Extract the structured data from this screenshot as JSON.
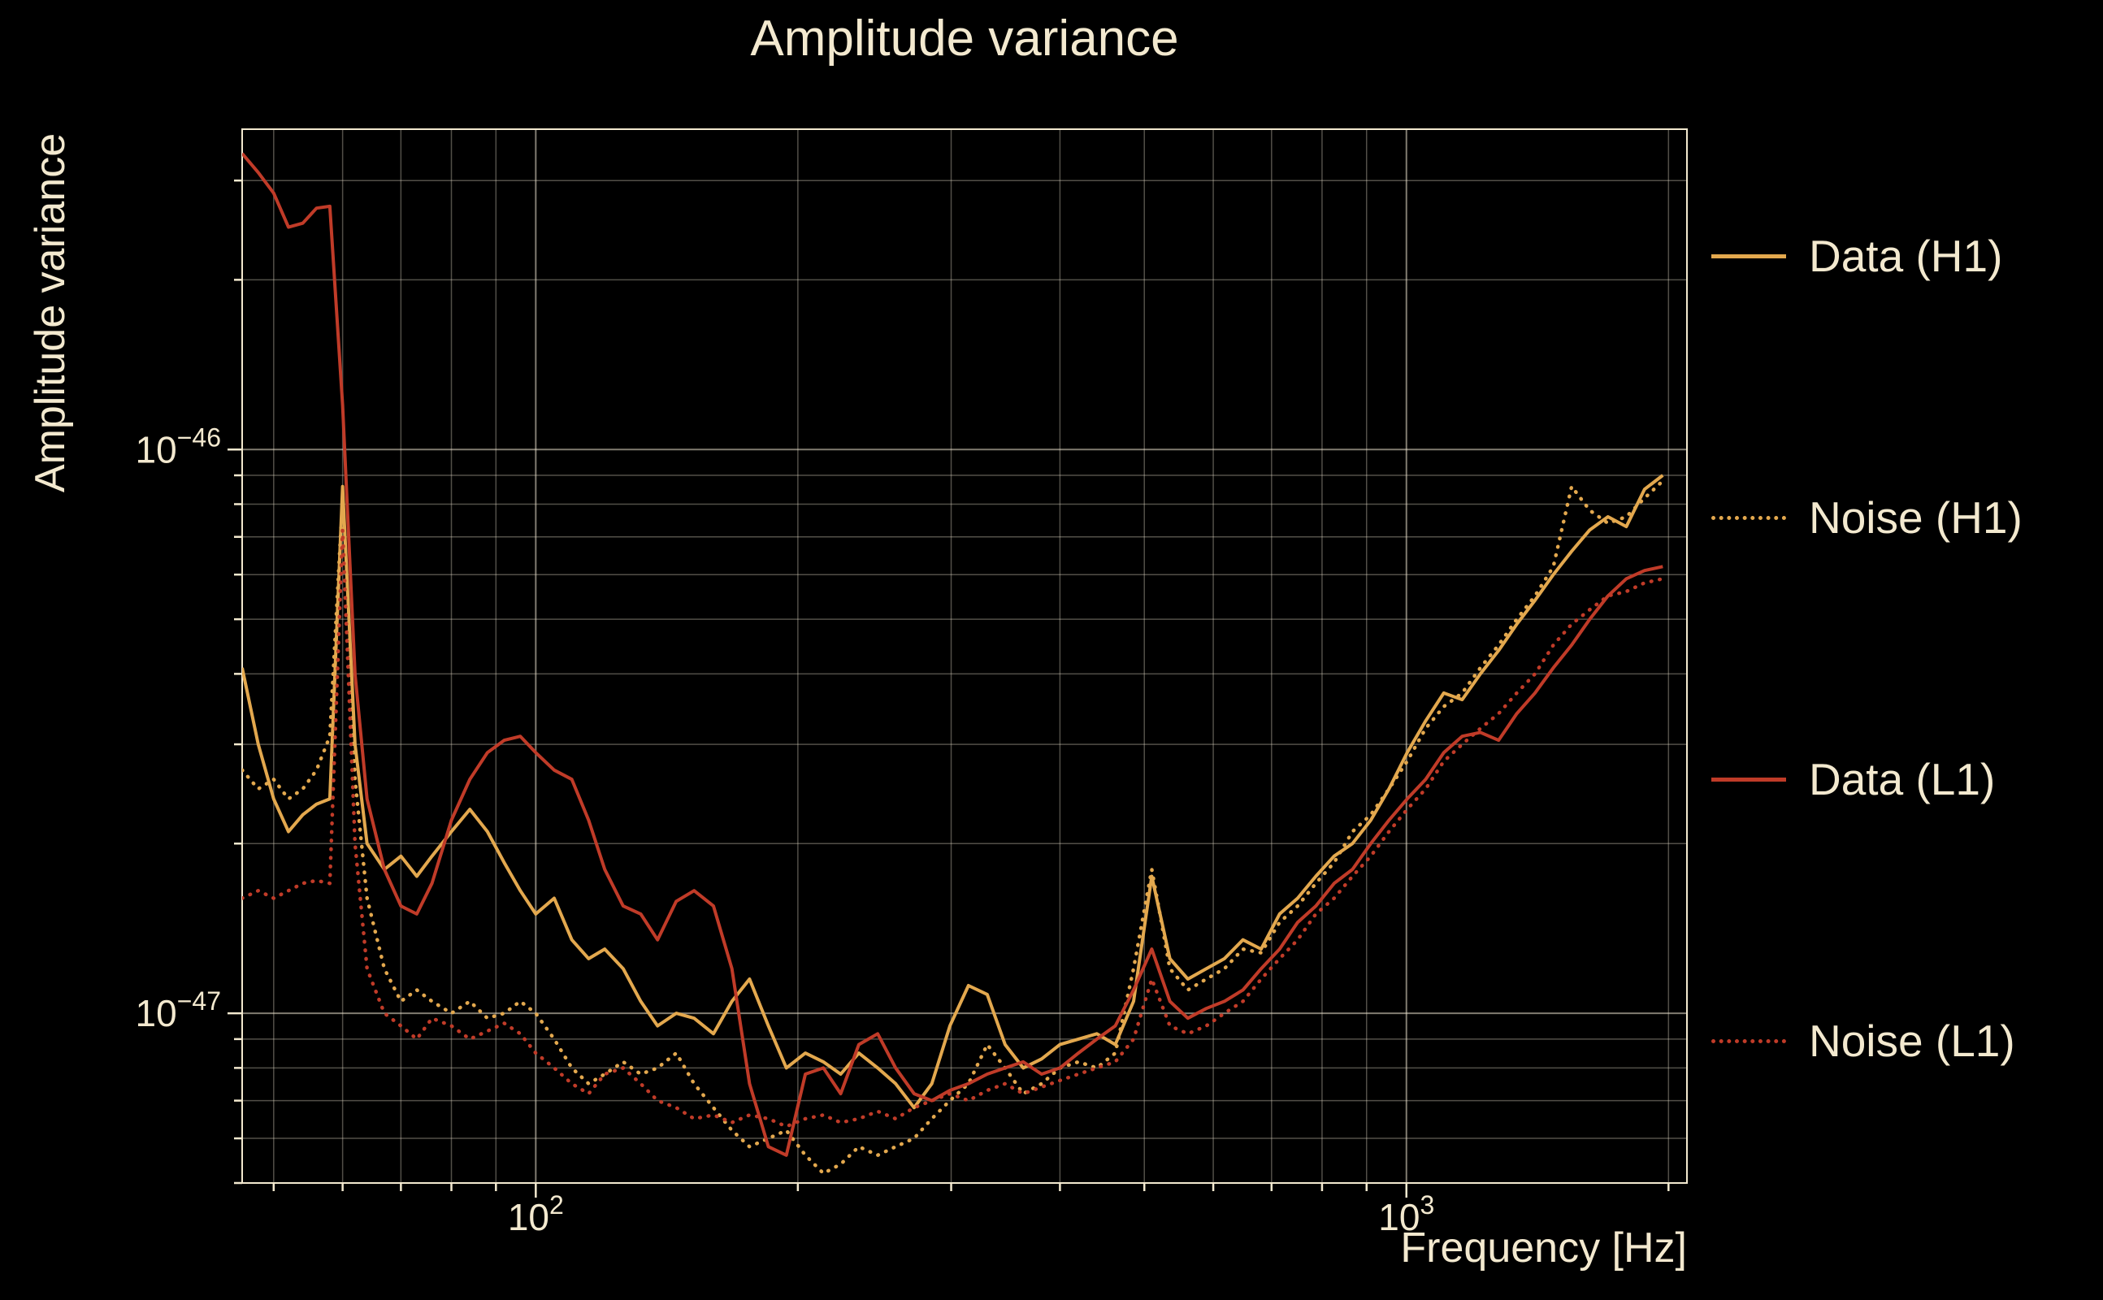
{
  "chart_data": {
    "type": "line",
    "title": "Amplitude variance",
    "xlabel": "Frequency [Hz]",
    "ylabel": "Amplitude variance",
    "xscale": "log",
    "yscale": "log",
    "xlim": [
      46,
      2100
    ],
    "ylim": [
      5e-48,
      3.7e-46
    ],
    "grid": true,
    "legend_position": "right-outside",
    "x_ticks": [
      {
        "base": "10",
        "exp": "2",
        "value": 100
      },
      {
        "base": "10",
        "exp": "3",
        "value": 1000
      }
    ],
    "y_ticks": [
      {
        "base": "10",
        "exp": "−46",
        "value": 1e-46
      },
      {
        "base": "10",
        "exp": "−47",
        "value": 1e-47
      }
    ],
    "colors": {
      "background": "#000000",
      "foreground": "#f3e9cf",
      "grid_major": "rgba(235,226,205,0.55)",
      "grid_minor": "rgba(235,226,205,0.35)",
      "gold": "#e3a84e",
      "red": "#c03b28"
    },
    "values_scale": 1e-48,
    "frequencies_hz": [
      46,
      48,
      50,
      52,
      54,
      56,
      58,
      60,
      62,
      64,
      67,
      70,
      73,
      76,
      80,
      84,
      88,
      92,
      96,
      100,
      105,
      110,
      115,
      120,
      126,
      132,
      138,
      145,
      152,
      160,
      168,
      176,
      185,
      194,
      204,
      214,
      224,
      235,
      247,
      259,
      272,
      285,
      299,
      314,
      330,
      346,
      363,
      381,
      400,
      420,
      441,
      463,
      486,
      510,
      535,
      561,
      589,
      618,
      649,
      681,
      715,
      750,
      787,
      826,
      867,
      910,
      955,
      1002,
      1052,
      1104,
      1159,
      1216,
      1276,
      1339,
      1405,
      1475,
      1548,
      1624,
      1704,
      1789,
      1877,
      1970
    ],
    "series": [
      {
        "id": "data-h1",
        "name": "Data (H1)",
        "color": "#e3a84e",
        "line_style": "solid",
        "values": [
          41,
          30,
          24,
          21,
          22.5,
          23.5,
          24,
          86,
          30,
          20,
          18,
          19,
          17.5,
          19,
          21,
          23,
          21,
          18.5,
          16.5,
          15,
          16,
          13.5,
          12.5,
          13,
          12,
          10.5,
          9.5,
          10,
          9.8,
          9.2,
          10.5,
          11.5,
          9.5,
          8,
          8.5,
          8.2,
          7.8,
          8.5,
          8,
          7.5,
          6.8,
          7.5,
          9.5,
          11.2,
          10.8,
          8.8,
          8,
          8.3,
          8.8,
          9,
          9.2,
          8.8,
          10.5,
          17.5,
          12.5,
          11.5,
          12,
          12.5,
          13.5,
          13,
          15,
          16,
          17.5,
          19,
          20,
          22,
          25,
          29,
          33,
          37,
          36,
          40,
          44,
          49,
          54,
          60,
          66,
          72,
          76,
          73,
          85,
          90
        ]
      },
      {
        "id": "noise-h1",
        "name": "Noise (H1)",
        "color": "#e3a84e",
        "line_style": "dotted",
        "values": [
          27,
          25,
          26,
          24,
          25,
          27,
          31,
          82,
          26,
          16,
          12,
          10.5,
          11,
          10.5,
          10,
          10.5,
          9.8,
          10,
          10.5,
          10,
          9,
          8,
          7.5,
          7.8,
          8.2,
          7.8,
          8,
          8.5,
          7.5,
          6.8,
          6.2,
          5.8,
          6,
          6.2,
          5.6,
          5.2,
          5.4,
          5.8,
          5.6,
          5.8,
          6,
          6.5,
          7,
          7.5,
          8.8,
          8,
          7.2,
          7.5,
          8,
          8.2,
          8,
          8.5,
          12,
          18,
          12,
          11,
          11.5,
          12,
          13,
          12.8,
          14.5,
          15.5,
          17,
          18.5,
          21,
          22.5,
          25,
          28,
          32,
          35,
          37,
          41,
          45,
          50,
          55,
          62,
          86,
          78,
          74,
          76,
          82,
          88
        ]
      },
      {
        "id": "data-l1",
        "name": "Data (L1)",
        "color": "#c03b28",
        "line_style": "solid",
        "values": [
          335,
          310,
          285,
          248,
          252,
          268,
          270,
          120,
          40,
          24,
          18,
          15.5,
          15,
          17,
          22,
          26,
          29,
          30.5,
          31,
          29,
          27,
          26,
          22,
          18,
          15.5,
          15,
          13.5,
          15.8,
          16.5,
          15.5,
          12,
          7.5,
          5.8,
          5.6,
          7.8,
          8,
          7.2,
          8.8,
          9.2,
          8,
          7.2,
          7,
          7.3,
          7.5,
          7.8,
          8,
          8.2,
          7.8,
          8,
          8.5,
          9,
          9.5,
          11,
          13,
          10.5,
          9.8,
          10.2,
          10.5,
          11,
          12,
          13,
          14.5,
          15.5,
          17,
          18,
          20,
          22,
          24,
          26,
          29,
          31,
          31.5,
          30.5,
          34,
          37,
          41,
          45,
          50,
          55,
          59,
          61,
          62
        ]
      },
      {
        "id": "noise-l1",
        "name": "Noise (L1)",
        "color": "#c03b28",
        "line_style": "dotted",
        "values": [
          16,
          16.5,
          16,
          16.5,
          17,
          17.2,
          17,
          72,
          20,
          12,
          10,
          9.5,
          9,
          9.8,
          9.5,
          9,
          9.3,
          9.6,
          9.2,
          8.5,
          8,
          7.5,
          7.2,
          7.8,
          8,
          7.5,
          7,
          6.8,
          6.5,
          6.6,
          6.4,
          6.6,
          6.5,
          6.3,
          6.5,
          6.6,
          6.4,
          6.5,
          6.7,
          6.5,
          6.8,
          7,
          7.2,
          7,
          7.3,
          7.5,
          7.2,
          7.4,
          7.6,
          7.8,
          8,
          8.2,
          9,
          11.5,
          9.5,
          9.2,
          9.5,
          10,
          10.5,
          11.5,
          12.5,
          13.5,
          15,
          16,
          17.5,
          19,
          21,
          23,
          25,
          28,
          30,
          32,
          34,
          37,
          40,
          45,
          49,
          52,
          55,
          56,
          58,
          59
        ]
      }
    ]
  }
}
